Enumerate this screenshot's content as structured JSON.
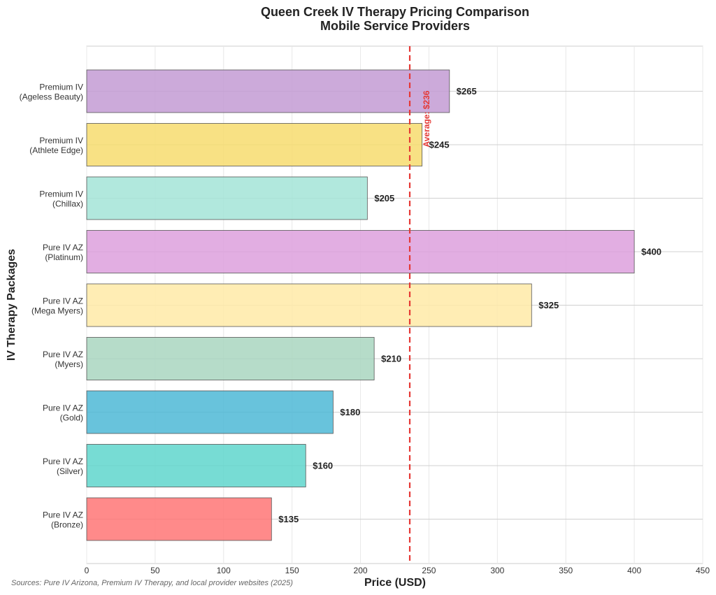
{
  "chart_data": {
    "type": "bar",
    "orientation": "horizontal",
    "title": "Queen Creek IV Therapy Pricing Comparison",
    "subtitle": "Mobile Service Providers",
    "xlabel": "Price (USD)",
    "ylabel": "IV Therapy Packages",
    "xlim": [
      0,
      450
    ],
    "xticks": [
      0,
      50,
      100,
      150,
      200,
      250,
      300,
      350,
      400,
      450
    ],
    "grid": true,
    "categories": [
      [
        "Premium IV",
        "(Ageless Beauty)"
      ],
      [
        "Premium IV",
        "(Athlete Edge)"
      ],
      [
        "Premium IV",
        "(Chillax)"
      ],
      [
        "Pure IV AZ",
        "(Platinum)"
      ],
      [
        "Pure IV AZ",
        "(Mega Myers)"
      ],
      [
        "Pure IV AZ",
        "(Myers)"
      ],
      [
        "Pure IV AZ",
        "(Gold)"
      ],
      [
        "Pure IV AZ",
        "(Silver)"
      ],
      [
        "Pure IV AZ",
        "(Bronze)"
      ]
    ],
    "values": [
      265,
      245,
      205,
      400,
      325,
      210,
      180,
      160,
      135
    ],
    "value_labels": [
      "$265",
      "$245",
      "$205",
      "$400",
      "$325",
      "$210",
      "$180",
      "$160",
      "$135"
    ],
    "colors": [
      "#c39bd3",
      "#f7dc6f",
      "#a3e4d7",
      "#dda0dd",
      "#ffeaa7",
      "#a9d6bf",
      "#4eb8d6",
      "#5fd6cc",
      "#ff7675"
    ],
    "average": {
      "value": 236,
      "label": "Average: $236",
      "color": "#e53935"
    },
    "source": "Sources: Pure IV Arizona, Premium IV Therapy, and local provider websites (2025)"
  }
}
